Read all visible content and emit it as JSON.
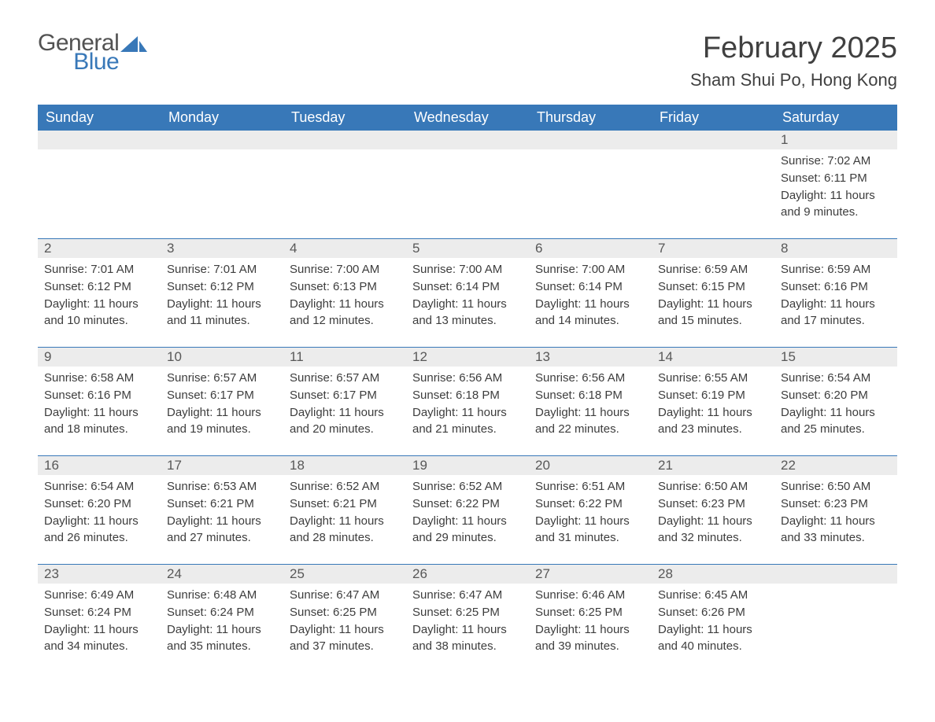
{
  "logo": {
    "word1": "General",
    "word2": "Blue",
    "sail_color": "#3878b8"
  },
  "title": "February 2025",
  "location": "Sham Shui Po, Hong Kong",
  "colors": {
    "header_bg": "#3878b8",
    "header_text": "#ffffff",
    "daynum_bg": "#ececec",
    "daynum_text": "#585858",
    "body_text": "#3d3d3d",
    "rule": "#3878b8",
    "page_bg": "#ffffff"
  },
  "typography": {
    "title_fontsize": 38,
    "location_fontsize": 22,
    "dayheader_fontsize": 18,
    "daynum_fontsize": 17,
    "detail_fontsize": 15,
    "font_family": "Arial"
  },
  "day_headers": [
    "Sunday",
    "Monday",
    "Tuesday",
    "Wednesday",
    "Thursday",
    "Friday",
    "Saturday"
  ],
  "weeks": [
    {
      "days": [
        null,
        null,
        null,
        null,
        null,
        null,
        {
          "n": "1",
          "sunrise": "7:02 AM",
          "sunset": "6:11 PM",
          "daylight": "11 hours and 9 minutes."
        }
      ]
    },
    {
      "days": [
        {
          "n": "2",
          "sunrise": "7:01 AM",
          "sunset": "6:12 PM",
          "daylight": "11 hours and 10 minutes."
        },
        {
          "n": "3",
          "sunrise": "7:01 AM",
          "sunset": "6:12 PM",
          "daylight": "11 hours and 11 minutes."
        },
        {
          "n": "4",
          "sunrise": "7:00 AM",
          "sunset": "6:13 PM",
          "daylight": "11 hours and 12 minutes."
        },
        {
          "n": "5",
          "sunrise": "7:00 AM",
          "sunset": "6:14 PM",
          "daylight": "11 hours and 13 minutes."
        },
        {
          "n": "6",
          "sunrise": "7:00 AM",
          "sunset": "6:14 PM",
          "daylight": "11 hours and 14 minutes."
        },
        {
          "n": "7",
          "sunrise": "6:59 AM",
          "sunset": "6:15 PM",
          "daylight": "11 hours and 15 minutes."
        },
        {
          "n": "8",
          "sunrise": "6:59 AM",
          "sunset": "6:16 PM",
          "daylight": "11 hours and 17 minutes."
        }
      ]
    },
    {
      "days": [
        {
          "n": "9",
          "sunrise": "6:58 AM",
          "sunset": "6:16 PM",
          "daylight": "11 hours and 18 minutes."
        },
        {
          "n": "10",
          "sunrise": "6:57 AM",
          "sunset": "6:17 PM",
          "daylight": "11 hours and 19 minutes."
        },
        {
          "n": "11",
          "sunrise": "6:57 AM",
          "sunset": "6:17 PM",
          "daylight": "11 hours and 20 minutes."
        },
        {
          "n": "12",
          "sunrise": "6:56 AM",
          "sunset": "6:18 PM",
          "daylight": "11 hours and 21 minutes."
        },
        {
          "n": "13",
          "sunrise": "6:56 AM",
          "sunset": "6:18 PM",
          "daylight": "11 hours and 22 minutes."
        },
        {
          "n": "14",
          "sunrise": "6:55 AM",
          "sunset": "6:19 PM",
          "daylight": "11 hours and 23 minutes."
        },
        {
          "n": "15",
          "sunrise": "6:54 AM",
          "sunset": "6:20 PM",
          "daylight": "11 hours and 25 minutes."
        }
      ]
    },
    {
      "days": [
        {
          "n": "16",
          "sunrise": "6:54 AM",
          "sunset": "6:20 PM",
          "daylight": "11 hours and 26 minutes."
        },
        {
          "n": "17",
          "sunrise": "6:53 AM",
          "sunset": "6:21 PM",
          "daylight": "11 hours and 27 minutes."
        },
        {
          "n": "18",
          "sunrise": "6:52 AM",
          "sunset": "6:21 PM",
          "daylight": "11 hours and 28 minutes."
        },
        {
          "n": "19",
          "sunrise": "6:52 AM",
          "sunset": "6:22 PM",
          "daylight": "11 hours and 29 minutes."
        },
        {
          "n": "20",
          "sunrise": "6:51 AM",
          "sunset": "6:22 PM",
          "daylight": "11 hours and 31 minutes."
        },
        {
          "n": "21",
          "sunrise": "6:50 AM",
          "sunset": "6:23 PM",
          "daylight": "11 hours and 32 minutes."
        },
        {
          "n": "22",
          "sunrise": "6:50 AM",
          "sunset": "6:23 PM",
          "daylight": "11 hours and 33 minutes."
        }
      ]
    },
    {
      "days": [
        {
          "n": "23",
          "sunrise": "6:49 AM",
          "sunset": "6:24 PM",
          "daylight": "11 hours and 34 minutes."
        },
        {
          "n": "24",
          "sunrise": "6:48 AM",
          "sunset": "6:24 PM",
          "daylight": "11 hours and 35 minutes."
        },
        {
          "n": "25",
          "sunrise": "6:47 AM",
          "sunset": "6:25 PM",
          "daylight": "11 hours and 37 minutes."
        },
        {
          "n": "26",
          "sunrise": "6:47 AM",
          "sunset": "6:25 PM",
          "daylight": "11 hours and 38 minutes."
        },
        {
          "n": "27",
          "sunrise": "6:46 AM",
          "sunset": "6:25 PM",
          "daylight": "11 hours and 39 minutes."
        },
        {
          "n": "28",
          "sunrise": "6:45 AM",
          "sunset": "6:26 PM",
          "daylight": "11 hours and 40 minutes."
        },
        null
      ]
    }
  ],
  "labels": {
    "sunrise": "Sunrise:",
    "sunset": "Sunset:",
    "daylight": "Daylight:"
  }
}
